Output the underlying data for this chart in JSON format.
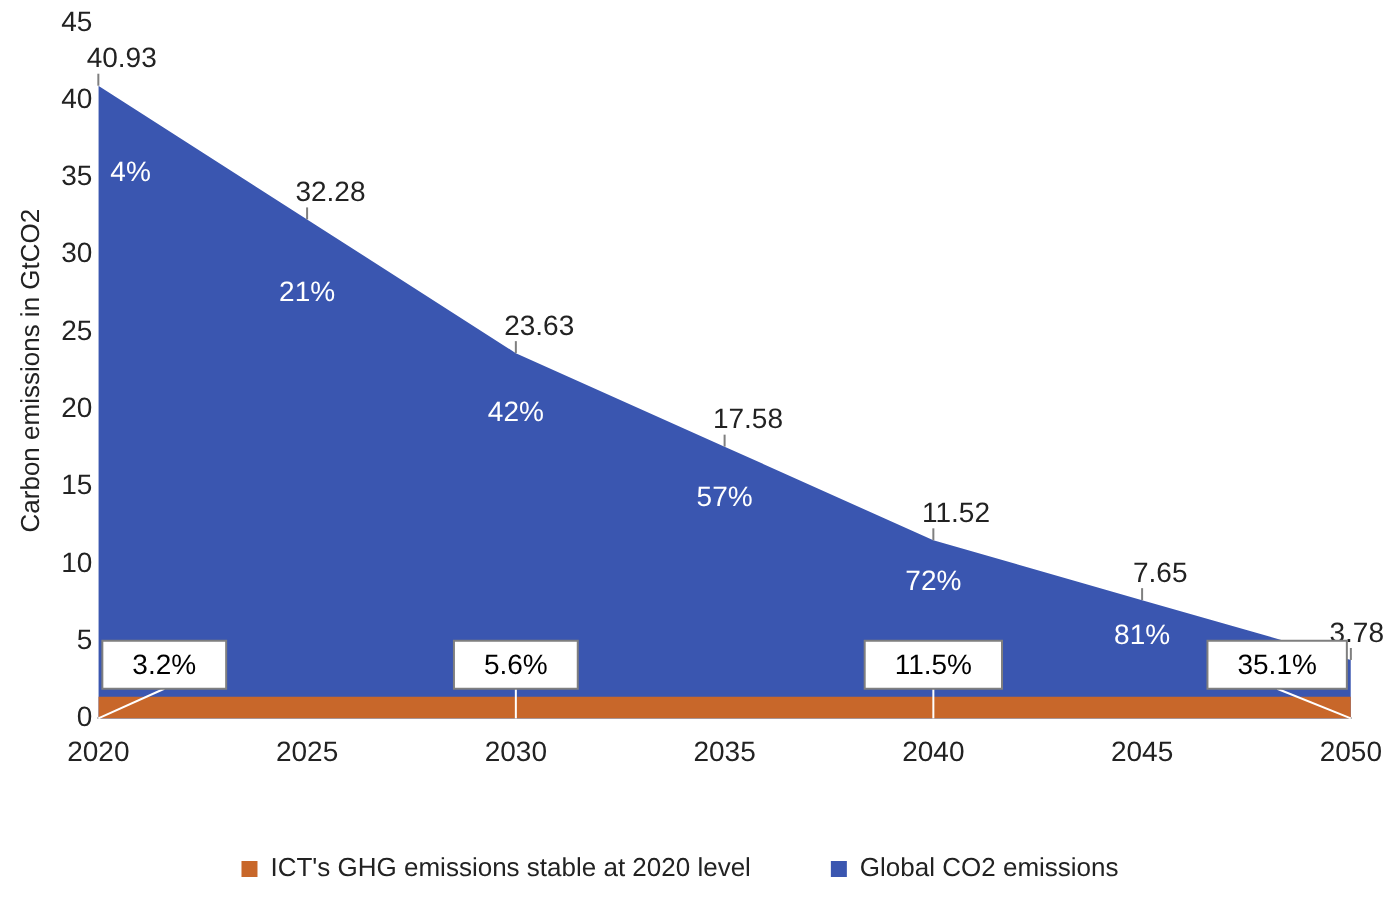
{
  "chart_data": {
    "type": "area",
    "ylabel": "Carbon emissions in GtCO2",
    "xlim": [
      2020,
      2050
    ],
    "xticks": [
      2020,
      2025,
      2030,
      2035,
      2040,
      2045,
      2050
    ],
    "ylim": [
      0,
      45
    ],
    "yticks": [
      0,
      5,
      10,
      15,
      20,
      25,
      30,
      35,
      40,
      45
    ],
    "grid": false,
    "legend": "bottom",
    "series": [
      {
        "name": "Global CO2 emissions",
        "color": "#3a56b0",
        "x": [
          2020,
          2025,
          2030,
          2035,
          2040,
          2045,
          2050
        ],
        "values": [
          40.93,
          32.28,
          23.63,
          17.58,
          11.52,
          7.65,
          3.78
        ],
        "value_labels": [
          "40.93",
          "32.28",
          "23.63",
          "17.58",
          "11.52",
          "7.65",
          "3.78"
        ]
      },
      {
        "name": "ICT's GHG emissions stable at 2020 level",
        "color": "#c8672a",
        "x": [
          2020,
          2030,
          2040,
          2050
        ],
        "values": [
          1.4,
          1.4,
          1.4,
          1.4
        ]
      }
    ],
    "annotations": [
      {
        "text": "4%",
        "x": 2020,
        "y": 40.93
      },
      {
        "text": "21%",
        "x": 2025,
        "y": 32.28
      },
      {
        "text": "42%",
        "x": 2030,
        "y": 23.63
      },
      {
        "text": "57%",
        "x": 2035,
        "y": 17.58
      },
      {
        "text": "72%",
        "x": 2040,
        "y": 11.52
      },
      {
        "text": "81%",
        "x": 2045,
        "y": 7.65
      },
      {
        "text": "3.2%",
        "x": 2020,
        "y": 1.4
      },
      {
        "text": "5.6%",
        "x": 2030,
        "y": 1.4
      },
      {
        "text": "11.5%",
        "x": 2040,
        "y": 1.4
      },
      {
        "text": "35.1%",
        "x": 2050,
        "y": 1.4
      }
    ]
  }
}
